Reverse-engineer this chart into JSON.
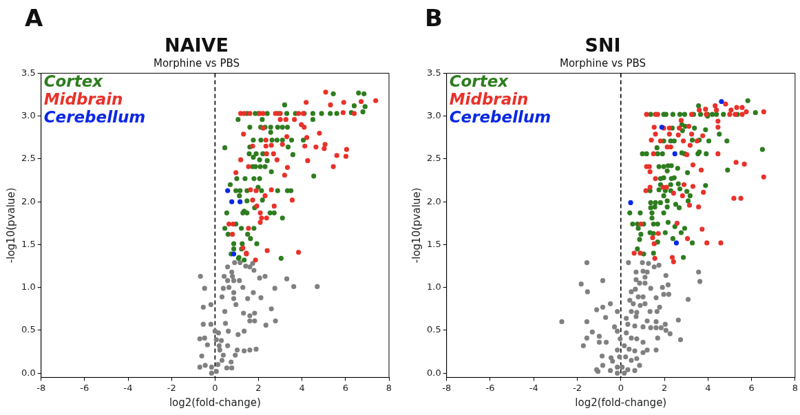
{
  "chart_data": [
    {
      "type": "scatter",
      "title": "NAIVE",
      "subtitle": "Morphine vs PBS",
      "xlabel": "log2(fold-change)",
      "ylabel": "-log10(pvalue)",
      "annotations": [
        "A"
      ],
      "xlim": [
        -8,
        8
      ],
      "ylim": [
        -0.05,
        3.5
      ],
      "xticks": [
        -8,
        -6,
        -4,
        -2,
        0,
        2,
        4,
        6,
        8
      ],
      "yticks": [
        {
          "value": 0,
          "label": "0.0"
        },
        {
          "value": 0.5,
          "label": "0.5"
        },
        {
          "value": 1,
          "label": "1.0"
        },
        {
          "value": 1.5,
          "label": "1.5"
        },
        {
          "value": 2,
          "label": "2.0"
        },
        {
          "value": 2.5,
          "label": "2.5"
        },
        {
          "value": 3,
          "label": "3.0"
        },
        {
          "value": 3.5,
          "label": "3.5"
        }
      ],
      "legend": "top left",
      "marker": "circle",
      "ref_lines": [
        {
          "axis": "x",
          "value": 0,
          "color": "#000000",
          "line_style": "dashed"
        }
      ],
      "series": [
        {
          "color": "#808080",
          "x": [
            -0.67,
            -0.48,
            -0.54,
            -0.54,
            -0.19,
            -0.7,
            -0.48,
            -0.61,
            -0.7,
            -0.45,
            -0.19,
            -0.35,
            -0.16,
            -0.16,
            0.06,
            0.16,
            0.29,
            0.22,
            0.32,
            0.13,
            0.32,
            0.45,
            0.48,
            0.61,
            0.58,
            0.38,
            0.54,
            0.77,
            0.74,
            0.93,
            1.02,
            1.06,
            1.34,
            1.34,
            1.6,
            1.89,
            0.38,
            0.64,
            0.86,
            0.86,
            0.96,
            1.31,
            1.6,
            1.82,
            1.6,
            1.82,
            1.5,
            1.76,
            2.11,
            1.28,
            0.58,
            0.77,
            0.8,
            0.42,
            0.58,
            0.86,
            1.12,
            0.9,
            1.15,
            1.41,
            1.6,
            1.79,
            1.73,
            2.05,
            2.3,
            2.59,
            2.78,
            2.34,
            2.75,
            3.3,
            3.62,
            4.7,
            0.06,
            0.0,
            0.19
          ],
          "values": [
            1.13,
            0.99,
            0.77,
            0.57,
            0.57,
            0.4,
            0.41,
            0.2,
            0.07,
            0.09,
            0.8,
            0.33,
            0.07,
            0.0,
            0.02,
            0.47,
            0.38,
            0.27,
            0.15,
            0.1,
            0.89,
            0.72,
            0.58,
            0.49,
            0.32,
            0.21,
            0.06,
            0.06,
            0.13,
            0.21,
            0.27,
            0.45,
            0.49,
            0.26,
            0.27,
            0.28,
            0.99,
            1.0,
            0.94,
            0.87,
            0.8,
            0.7,
            0.67,
            0.7,
            0.61,
            0.61,
            0.87,
            0.94,
            0.88,
            1.0,
            1.24,
            1.18,
            1.13,
            1.13,
            1.08,
            1.08,
            1.08,
            1.29,
            1.29,
            1.25,
            1.24,
            1.2,
            1.28,
            1.11,
            1.13,
            0.75,
            0.61,
            0.56,
            0.99,
            1.1,
            1.01,
            1.01,
            0.39,
            0.49,
            0.32
          ]
        },
        {
          "name": "Cortex",
          "color": "#2e7d1f",
          "x": [
            5.44,
            6.6,
            6.85,
            3.2,
            6.4,
            6.9,
            6.8,
            6.27,
            1.47,
            1.85,
            2.0,
            2.4,
            2.9,
            3.3,
            3.7,
            4.1,
            4.5,
            4.9,
            5.3,
            5.6,
            1.06,
            2.17,
            4.5,
            1.6,
            2.1,
            2.3,
            2.56,
            2.88,
            3.1,
            3.33,
            2.56,
            1.76,
            2.11,
            2.62,
            2.85,
            3.1,
            3.52,
            4.06,
            0.45,
            1.6,
            3.36,
            1.57,
            1.89,
            2.2,
            3.58,
            1.76,
            2.05,
            2.4,
            1.73,
            1.86,
            2.08,
            2.3,
            2.59,
            1.0,
            1.38,
            1.79,
            2.05,
            4.54,
            0.7,
            1.98,
            0.96,
            1.15,
            1.47,
            2.14,
            2.88,
            3.33,
            3.49,
            1.12,
            1.47,
            2.18,
            1.82,
            1.34,
            0.54,
            1.28,
            1.47,
            2.53,
            2.72,
            3.1,
            0.45,
            0.96,
            1.21,
            1.79,
            0.6,
            1.5,
            1.63,
            0.86,
            1.25,
            0.86,
            1.22,
            1.92,
            3.04,
            0.74,
            1.1,
            1.34,
            1.08
          ],
          "values": [
            3.26,
            3.27,
            3.26,
            3.13,
            3.12,
            3.11,
            3.05,
            3.04,
            3.03,
            3.03,
            3.03,
            3.03,
            3.03,
            3.03,
            3.03,
            3.03,
            3.03,
            3.03,
            3.03,
            3.03,
            2.96,
            2.96,
            2.96,
            2.87,
            2.87,
            2.87,
            2.87,
            2.87,
            2.87,
            2.87,
            2.81,
            2.72,
            2.72,
            2.72,
            2.72,
            2.72,
            2.72,
            2.72,
            2.63,
            2.64,
            2.64,
            2.56,
            2.56,
            2.56,
            2.55,
            2.52,
            2.49,
            2.48,
            2.41,
            2.41,
            2.41,
            2.41,
            2.35,
            2.27,
            2.27,
            2.27,
            2.27,
            2.3,
            2.2,
            2.17,
            2.13,
            2.13,
            2.13,
            2.13,
            2.13,
            2.13,
            2.13,
            2.07,
            2.01,
            2.02,
            1.93,
            1.89,
            1.87,
            1.87,
            1.87,
            1.87,
            1.87,
            1.81,
            1.69,
            1.74,
            1.69,
            1.69,
            1.62,
            1.62,
            1.57,
            1.51,
            1.51,
            1.45,
            1.45,
            1.51,
            1.34,
            1.39,
            1.35,
            1.32,
            1.34
          ]
        },
        {
          "name": "Midbrain",
          "color": "#e8322a",
          "x": [
            5.09,
            5.92,
            6.72,
            7.39,
            4.19,
            5.31,
            5.89,
            6.4,
            1.18,
            1.34,
            1.6,
            2.05,
            2.21,
            2.78,
            3.0,
            3.84,
            4.06,
            3.0,
            3.26,
            3.65,
            3.97,
            4.1,
            2.21,
            1.31,
            4.8,
            3.3,
            4.22,
            2.34,
            3.1,
            1.73,
            2.34,
            2.59,
            4.13,
            4.64,
            5.06,
            5.02,
            6.05,
            2.37,
            2.69,
            5.6,
            6.02,
            1.18,
            2.85,
            4.26,
            1.54,
            3.33,
            5.44,
            0.96,
            3.2,
            1.63,
            1.89,
            2.59,
            2.3,
            3.55,
            1.73,
            2.72,
            1.92,
            2.08,
            2.14,
            2.37,
            2.08,
            0.64,
            0.83,
            1.54,
            0.8,
            1.28,
            1.44,
            2.4,
            3.84,
            1.86,
            1.44
          ],
          "values": [
            3.28,
            3.16,
            3.17,
            3.18,
            3.16,
            3.13,
            3.04,
            3.03,
            3.03,
            3.03,
            3.03,
            3.03,
            3.03,
            3.03,
            3.03,
            3.03,
            3.03,
            2.96,
            2.96,
            2.96,
            2.9,
            2.87,
            2.86,
            2.79,
            2.8,
            2.76,
            2.75,
            2.72,
            2.67,
            2.65,
            2.65,
            2.66,
            2.65,
            2.64,
            2.67,
            2.62,
            2.61,
            2.56,
            2.56,
            2.54,
            2.53,
            2.49,
            2.49,
            2.48,
            2.41,
            2.4,
            2.41,
            2.34,
            2.31,
            2.14,
            2.13,
            2.14,
            2.07,
            2.02,
            2.02,
            1.95,
            1.95,
            1.87,
            1.81,
            1.81,
            1.76,
            1.74,
            1.74,
            1.69,
            1.62,
            1.46,
            1.4,
            1.43,
            1.41,
            1.32,
            1.39
          ]
        },
        {
          "name": "Cerebellum",
          "color": "#0a28e6",
          "x": [
            0.58,
            0.77,
            1.15,
            0.86
          ],
          "values": [
            2.13,
            2.0,
            2.0,
            1.39
          ]
        }
      ]
    },
    {
      "type": "scatter",
      "title": "SNI",
      "subtitle": "Morphine vs PBS",
      "xlabel": "log2(fold-change)",
      "ylabel": "-log10(pvalue)",
      "annotations": [
        "B"
      ],
      "xlim": [
        -8,
        8
      ],
      "ylim": [
        -0.05,
        3.5
      ],
      "xticks": [
        -8,
        -6,
        -4,
        -2,
        0,
        2,
        4,
        6,
        8
      ],
      "yticks": [
        {
          "value": 0,
          "label": "0.0"
        },
        {
          "value": 0.5,
          "label": "0.5"
        },
        {
          "value": 1,
          "label": "1.0"
        },
        {
          "value": 1.5,
          "label": "1.5"
        },
        {
          "value": 2,
          "label": "2.0"
        },
        {
          "value": 2.5,
          "label": "2.5"
        },
        {
          "value": 3,
          "label": "3.0"
        },
        {
          "value": 3.5,
          "label": "3.5"
        }
      ],
      "legend": "top left",
      "marker": "circle",
      "ref_lines": [
        {
          "axis": "x",
          "value": 0,
          "color": "#000000",
          "line_style": "dashed"
        }
      ],
      "series": [
        {
          "color": "#808080",
          "x": [
            -1.56,
            -1.82,
            -1.53,
            -0.83,
            -2.71,
            -1.56,
            -1.11,
            -0.83,
            -0.48,
            -0.16,
            -0.7,
            -1.31,
            -1.56,
            -0.99,
            -0.67,
            -1.72,
            -0.99,
            -0.29,
            -0.16,
            -0.86,
            -0.83,
            -1.11,
            -1.05,
            -0.45,
            -0.38,
            -0.48,
            -0.16,
            -0.03,
            -0.16,
            0.35,
            0.99,
            1.27,
            1.53,
            1.75,
            0.7,
            1.02,
            1.21,
            1.11,
            0.7,
            0.86,
            1.11,
            0.67,
            0.48,
            1.37,
            2.07,
            2.17,
            1.91,
            1.97,
            2.2,
            1.62,
            3.57,
            3.63,
            3.09,
            0.41,
            0.8,
            1.02,
            0.57,
            0.89,
            1.11,
            1.34,
            1.66,
            1.78,
            0.48,
            0.73,
            0.25,
            0.7,
            1.21,
            1.62,
            2.64,
            0.32,
            0.64,
            1.02,
            1.37,
            1.62,
            1.85,
            2.04,
            2.07,
            2.26,
            1.69,
            2.74,
            0.25,
            0.48,
            0.73,
            1.02,
            0.16,
            0.38,
            0.64,
            1.02,
            1.21,
            1.62,
            -0.06,
            0.22,
            0.48,
            0.73,
            0.06,
            0.32,
            0.64,
            0.86,
            0.16,
            -0.16
          ],
          "values": [
            1.29,
            1.04,
            0.95,
            1.08,
            0.6,
            0.6,
            0.74,
            0.77,
            0.81,
            0.72,
            0.65,
            0.48,
            0.41,
            0.43,
            0.36,
            0.32,
            0.36,
            0.54,
            0.49,
            0.2,
            0.09,
            0.04,
            0.02,
            0.18,
            0.14,
            0.03,
            0.07,
            0.4,
            0.27,
            1.29,
            1.29,
            1.28,
            1.24,
            1.26,
            1.18,
            1.19,
            1.18,
            1.12,
            1.09,
            1.05,
            1.05,
            0.98,
            0.95,
            0.99,
            1.14,
            1.03,
            1.0,
            0.92,
            0.92,
            0.88,
            1.18,
            1.07,
            0.86,
            0.85,
            0.89,
            0.89,
            0.81,
            0.79,
            0.81,
            0.72,
            0.72,
            0.77,
            0.72,
            0.71,
            0.64,
            0.66,
            0.61,
            0.6,
            0.62,
            0.57,
            0.55,
            0.54,
            0.53,
            0.53,
            0.53,
            0.57,
            0.5,
            0.46,
            0.41,
            0.39,
            0.47,
            0.41,
            0.4,
            0.36,
            0.32,
            0.28,
            0.26,
            0.24,
            0.27,
            0.27,
            0.19,
            0.19,
            0.15,
            0.17,
            0.07,
            0.04,
            0.03,
            0.09,
            0.0,
            0.0
          ]
        },
        {
          "name": "Cortex",
          "color": "#2e7d1f",
          "x": [
            5.83,
            3.57,
            6.18,
            1.37,
            1.97,
            2.07,
            2.39,
            2.71,
            2.93,
            3.34,
            3.66,
            3.98,
            4.2,
            4.39,
            4.71,
            5.35,
            3.98,
            2.8,
            2.36,
            2.96,
            3.38,
            3.89,
            2.83,
            4.52,
            1.97,
            2.29,
            2.45,
            3.28,
            3.6,
            4.04,
            4.87,
            1.66,
            0.99,
            1.18,
            1.69,
            1.91,
            2.8,
            2.93,
            3.54,
            3.6,
            3.92,
            6.5,
            1.75,
            1.97,
            2.17,
            2.32,
            2.61,
            2.13,
            3.06,
            4.9,
            1.82,
            1.97,
            2.32,
            2.45,
            1.82,
            2.29,
            2.64,
            3.89,
            1.34,
            1.75,
            2.04,
            2.29,
            2.71,
            3.03,
            1.97,
            3.18,
            1.37,
            1.59,
            1.82,
            2.13,
            3.09,
            1.37,
            1.56,
            2.13,
            2.52,
            2.68,
            0.41,
            0.89,
            1.43,
            1.97,
            1.43,
            0.54,
            0.76,
            1.05,
            1.5,
            1.69,
            2.17,
            2.48,
            2.93,
            0.8,
            0.92,
            1.34,
            1.5,
            2.04,
            2.77,
            0.86,
            1.69,
            2.39,
            3.28,
            0.76,
            1.05,
            1.5,
            2.87
          ],
          "values": [
            3.18,
            3.12,
            3.04,
            3.02,
            3.02,
            3.02,
            3.02,
            3.02,
            3.02,
            3.02,
            3.02,
            3.02,
            3.02,
            3.02,
            3.02,
            3.02,
            3.0,
            2.9,
            2.86,
            2.88,
            2.86,
            2.84,
            2.83,
            2.79,
            2.71,
            2.71,
            2.71,
            2.72,
            2.72,
            2.71,
            2.71,
            2.63,
            2.56,
            2.56,
            2.56,
            2.56,
            2.57,
            2.56,
            2.56,
            2.58,
            2.56,
            2.61,
            2.41,
            2.41,
            2.42,
            2.42,
            2.39,
            2.36,
            2.34,
            2.37,
            2.27,
            2.28,
            2.27,
            2.28,
            2.2,
            2.2,
            2.21,
            2.19,
            2.13,
            2.14,
            2.13,
            2.13,
            2.15,
            2.12,
            2.07,
            2.07,
            1.99,
            1.99,
            1.99,
            2.01,
            2.01,
            1.93,
            1.94,
            1.94,
            1.97,
            1.93,
            1.87,
            1.87,
            1.87,
            1.87,
            1.81,
            1.74,
            1.74,
            1.74,
            1.74,
            1.74,
            1.76,
            1.71,
            1.69,
            1.69,
            1.62,
            1.64,
            1.63,
            1.64,
            1.64,
            1.56,
            1.53,
            1.57,
            1.52,
            1.45,
            1.39,
            1.4,
            1.35
          ]
        },
        {
          "name": "Midbrain",
          "color": "#e8322a",
          "x": [
            4.81,
            4.33,
            5.32,
            5.57,
            5.06,
            3.6,
            3.89,
            4.39,
            5.76,
            6.56,
            1.18,
            1.59,
            1.69,
            3.25,
            3.92,
            5.0,
            5.25,
            5.57,
            2.77,
            4.46,
            4.46,
            1.53,
            1.97,
            2.23,
            2.68,
            3.12,
            1.59,
            2.23,
            2.64,
            3.25,
            3.76,
            1.4,
            1.82,
            2.87,
            3.5,
            3.18,
            2.13,
            2.29,
            1.5,
            3.03,
            4.46,
            1.18,
            1.31,
            1.34,
            3.31,
            3.69,
            5.29,
            5.67,
            6.56,
            1.59,
            1.34,
            1.94,
            2.1,
            1.15,
            2.42,
            2.9,
            3.31,
            3.79,
            2.83,
            5.19,
            5.51,
            3.15,
            3.57,
            0.92,
            2.58,
            3.73,
            1.72,
            1.46,
            1.53,
            3.06,
            3.95,
            4.59,
            0.61,
            0.89,
            1.56,
            2.36,
            2.42
          ],
          "values": [
            3.14,
            3.12,
            3.1,
            3.1,
            3.07,
            3.07,
            3.08,
            3.07,
            3.05,
            3.05,
            3.02,
            3.02,
            3.02,
            3.02,
            3.02,
            3.02,
            3.02,
            3.02,
            2.95,
            2.94,
            2.87,
            2.87,
            2.86,
            2.86,
            2.86,
            2.88,
            2.79,
            2.79,
            2.78,
            2.79,
            2.77,
            2.72,
            2.71,
            2.71,
            2.71,
            2.66,
            2.64,
            2.64,
            2.56,
            2.55,
            2.56,
            2.41,
            2.41,
            2.35,
            2.43,
            2.37,
            2.46,
            2.44,
            2.29,
            2.27,
            2.17,
            2.17,
            2.17,
            2.13,
            2.1,
            2.2,
            2.18,
            2.11,
            2.07,
            2.04,
            2.04,
            1.96,
            1.94,
            1.74,
            1.75,
            1.68,
            1.63,
            1.58,
            1.51,
            1.57,
            1.52,
            1.52,
            1.4,
            1.4,
            1.34,
            1.35,
            1.3
          ]
        },
        {
          "name": "Cerebellum",
          "color": "#0a28e6",
          "x": [
            4.62,
            1.88,
            2.48,
            0.45,
            2.55
          ],
          "values": [
            3.17,
            2.87,
            2.56,
            1.99,
            1.52
          ]
        }
      ]
    }
  ]
}
